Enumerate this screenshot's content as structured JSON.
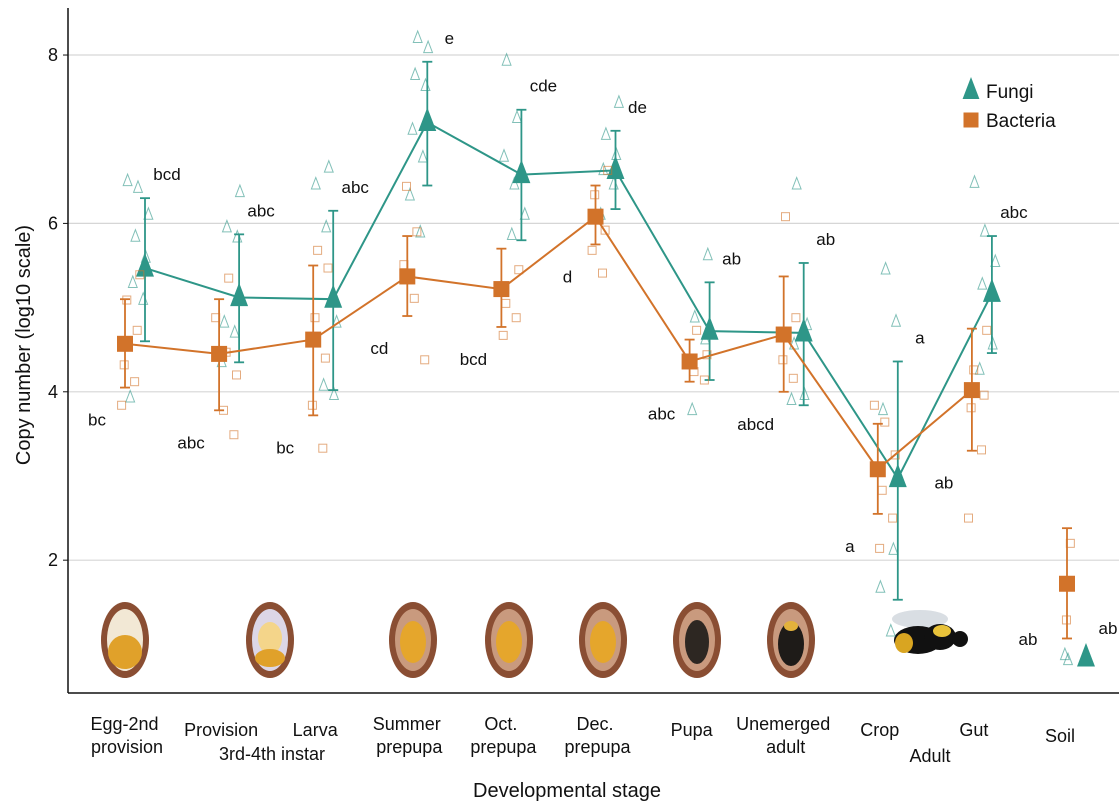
{
  "chart_data": {
    "type": "line",
    "y_label": "Copy number (log10 scale)",
    "x_label": "Developmental stage",
    "categories": [
      "Egg-2nd provision",
      "Provision",
      "Larva",
      "Summer prepupa",
      "Oct. prepupa",
      "Dec. prepupa",
      "Pupa",
      "Unemerged adult",
      "Crop",
      "Gut"
    ],
    "group_labels": [
      "3rd-4th instar",
      "Adult"
    ],
    "soil_label": "Soil",
    "ylim": [
      0.42,
      8.53
    ],
    "yticks": [
      2,
      4,
      6,
      8
    ],
    "grid": true,
    "legend": "upper right",
    "series": [
      {
        "name": "Fungi",
        "color": "#2e9688",
        "marker": "triangle",
        "values": [
          5.47,
          5.12,
          5.1,
          7.2,
          6.58,
          6.63,
          4.72,
          4.7,
          2.97,
          5.17
        ],
        "lower": [
          4.6,
          4.35,
          4.02,
          6.45,
          5.8,
          6.17,
          4.14,
          3.84,
          1.53,
          4.46
        ],
        "upper": [
          6.3,
          5.87,
          6.15,
          7.92,
          7.35,
          7.1,
          5.3,
          5.53,
          4.36,
          5.85
        ],
        "letters": [
          "bcd",
          "abc",
          "abc",
          "e",
          "cde",
          "de",
          "ab",
          "ab",
          "a",
          "abc"
        ],
        "points": [
          [
            6.5,
            6.42,
            6.1,
            5.84,
            5.59,
            5.29,
            5.09,
            3.93
          ],
          [
            6.37,
            5.95,
            5.83,
            4.82,
            4.7,
            4.35
          ],
          [
            6.66,
            6.46,
            5.95,
            4.82,
            4.07,
            3.96
          ],
          [
            8.2,
            8.08,
            7.76,
            7.63,
            7.11,
            6.78,
            6.33,
            5.89
          ],
          [
            7.93,
            7.25,
            6.79,
            6.46,
            6.1,
            5.86
          ],
          [
            7.43,
            7.05,
            6.81,
            6.63,
            6.46,
            6.1
          ],
          [
            5.62,
            4.88,
            4.62,
            3.78
          ],
          [
            6.46,
            4.79,
            4.56,
            3.96,
            3.9
          ],
          [
            5.45,
            4.83,
            3.78,
            2.12,
            1.67,
            1.15
          ],
          [
            6.48,
            5.9,
            5.54,
            5.27,
            4.56,
            4.26
          ]
        ],
        "soil": {
          "value": 0.84,
          "lower": null,
          "upper": null,
          "letter": "ab",
          "points": [
            0.87,
            0.81
          ]
        }
      },
      {
        "name": "Bacteria",
        "color": "#d2732a",
        "marker": "square",
        "values": [
          4.57,
          4.45,
          4.62,
          5.37,
          5.22,
          6.08,
          4.36,
          4.68,
          3.08,
          4.02
        ],
        "lower": [
          4.05,
          3.78,
          3.72,
          4.9,
          4.77,
          5.75,
          4.12,
          4.0,
          2.55,
          3.3
        ],
        "upper": [
          5.1,
          5.1,
          5.5,
          5.85,
          5.7,
          6.45,
          4.62,
          5.37,
          3.62,
          4.75
        ],
        "letters": [
          "bc",
          "abc",
          "bc",
          "cd",
          "bcd",
          "d",
          "abc",
          "abcd",
          "a",
          "ab"
        ],
        "points": [
          [
            5.39,
            5.09,
            4.73,
            4.32,
            4.12,
            3.84
          ],
          [
            5.35,
            4.88,
            4.47,
            4.2,
            3.78,
            3.49
          ],
          [
            5.68,
            5.47,
            4.88,
            4.4,
            3.84,
            3.33
          ],
          [
            6.44,
            5.9,
            5.51,
            5.11,
            4.38
          ],
          [
            5.45,
            5.05,
            4.88,
            4.67
          ],
          [
            6.63,
            6.34,
            5.92,
            5.68,
            5.41
          ],
          [
            4.73,
            4.44,
            4.24,
            4.14
          ],
          [
            6.08,
            4.88,
            4.38,
            4.16
          ],
          [
            3.84,
            3.64,
            3.25,
            2.83,
            2.5,
            2.14
          ],
          [
            4.73,
            4.26,
            3.96,
            3.81,
            3.31,
            2.5
          ]
        ],
        "soil": {
          "value": 1.72,
          "lower": 1.07,
          "upper": 2.38,
          "letter": "ab",
          "points": [
            2.2,
            1.29
          ]
        }
      }
    ]
  }
}
